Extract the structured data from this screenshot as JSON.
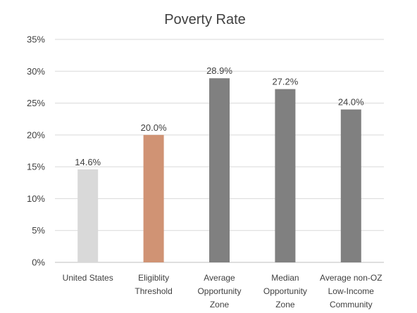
{
  "chart_data": {
    "type": "bar",
    "title": "Poverty Rate",
    "xlabel": "",
    "ylabel": "",
    "ylim": [
      0,
      35
    ],
    "y_ticks": [
      0,
      5,
      10,
      15,
      20,
      25,
      30,
      35
    ],
    "y_tick_labels": [
      "0%",
      "5%",
      "10%",
      "15%",
      "20%",
      "25%",
      "30%",
      "35%"
    ],
    "grid": true,
    "legend": "none",
    "categories": [
      [
        "United States"
      ],
      [
        "Eligiblity",
        "Threshold"
      ],
      [
        "Average",
        "Opportunity",
        "Zone"
      ],
      [
        "Median",
        "Opportunity",
        "Zone"
      ],
      [
        "Average non-OZ",
        "Low-Income",
        "Community"
      ]
    ],
    "values": [
      14.6,
      20.0,
      28.9,
      27.2,
      24.0
    ],
    "data_labels": [
      "14.6%",
      "20.0%",
      "28.9%",
      "27.2%",
      "24.0%"
    ],
    "colors": [
      "#d9d9d9",
      "#d09374",
      "#808080",
      "#808080",
      "#808080"
    ]
  }
}
